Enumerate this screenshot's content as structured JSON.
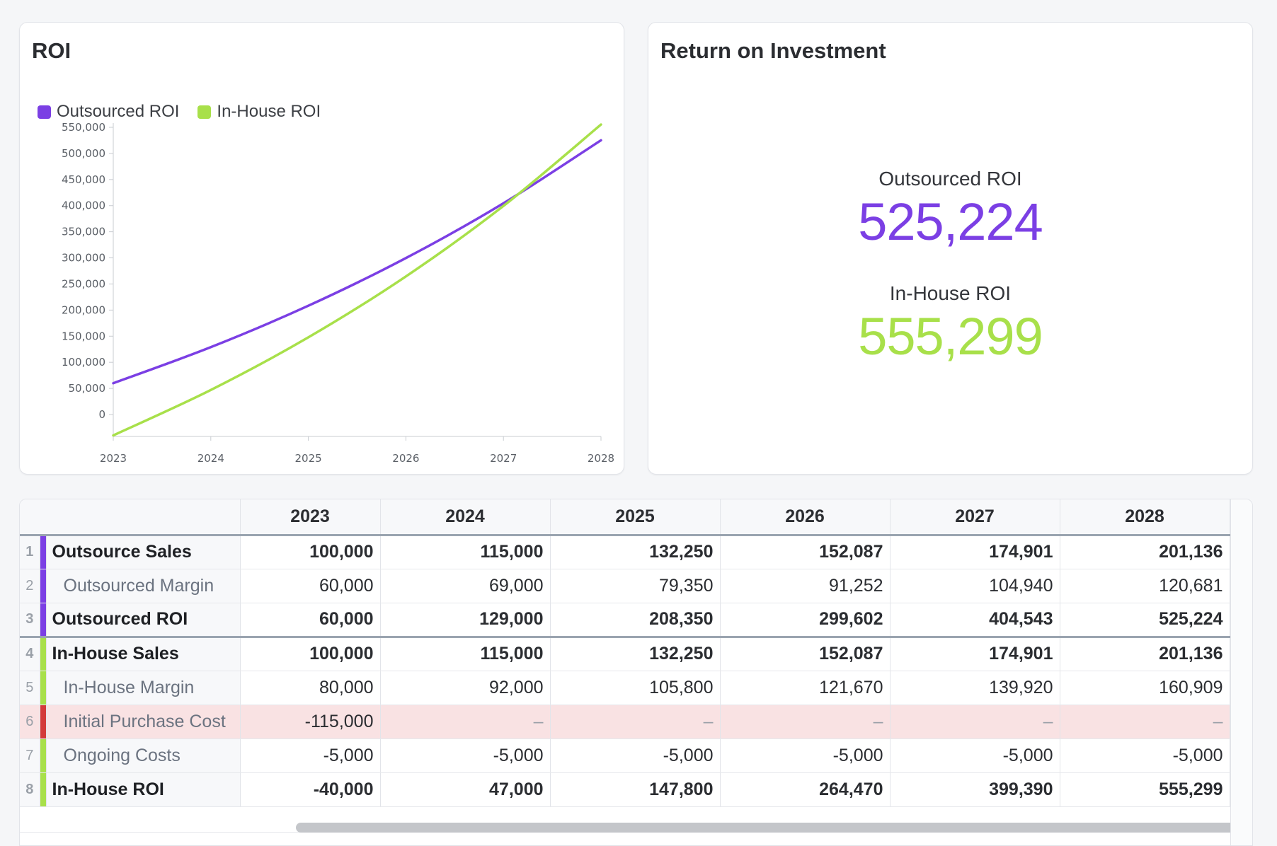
{
  "chart_card": {
    "title": "ROI",
    "legend": [
      {
        "label": "Outsourced ROI",
        "color": "#7b3fe4"
      },
      {
        "label": "In-House ROI",
        "color": "#a8e04a"
      }
    ]
  },
  "chart_data": {
    "type": "line",
    "title": "ROI",
    "x": [
      "2023",
      "2024",
      "2025",
      "2026",
      "2027",
      "2028"
    ],
    "series": [
      {
        "name": "Outsourced ROI",
        "color": "#7b3fe4",
        "values": [
          60000,
          129000,
          208350,
          299602,
          404543,
          525224
        ]
      },
      {
        "name": "In-House ROI",
        "color": "#a8e04a",
        "values": [
          -40000,
          47000,
          147800,
          264470,
          399390,
          555299
        ]
      }
    ],
    "yticks": [
      "550,000",
      "500,000",
      "450,000",
      "400,000",
      "350,000",
      "300,000",
      "250,000",
      "200,000",
      "150,000",
      "100,000",
      "50,000",
      "0"
    ],
    "ylim": [
      -40000,
      555000
    ],
    "grid": false,
    "legend_position": "top-left"
  },
  "stats_card": {
    "title": "Return on Investment",
    "items": [
      {
        "label": "Outsourced ROI",
        "value": "525,224",
        "color": "#7b3fe4"
      },
      {
        "label": "In-House ROI",
        "value": "555,299",
        "color": "#a8e04a"
      }
    ]
  },
  "table": {
    "years": [
      "2023",
      "2024",
      "2025",
      "2026",
      "2027",
      "2028"
    ],
    "rows": [
      {
        "num": "1",
        "label": "Outsource Sales",
        "bar": "#7b3fe4",
        "values": [
          "100,000",
          "115,000",
          "132,250",
          "152,087",
          "174,901",
          "201,136"
        ]
      },
      {
        "num": "2",
        "label": "Outsourced Margin",
        "bar": "#7b3fe4",
        "values": [
          "60,000",
          "69,000",
          "79,350",
          "91,252",
          "104,940",
          "120,681"
        ]
      },
      {
        "num": "3",
        "label": "Outsourced ROI",
        "bar": "#7b3fe4",
        "values": [
          "60,000",
          "129,000",
          "208,350",
          "299,602",
          "404,543",
          "525,224"
        ]
      },
      {
        "num": "4",
        "label": "In-House Sales",
        "bar": "#a8e04a",
        "values": [
          "100,000",
          "115,000",
          "132,250",
          "152,087",
          "174,901",
          "201,136"
        ]
      },
      {
        "num": "5",
        "label": "In-House Margin",
        "bar": "#a8e04a",
        "values": [
          "80,000",
          "92,000",
          "105,800",
          "121,670",
          "139,920",
          "160,909"
        ]
      },
      {
        "num": "6",
        "label": "Initial Purchase Cost",
        "bar": "#d33a3a",
        "values": [
          "-115,000",
          "–",
          "–",
          "–",
          "–",
          "–"
        ]
      },
      {
        "num": "7",
        "label": "Ongoing Costs",
        "bar": "#a8e04a",
        "values": [
          "-5,000",
          "-5,000",
          "-5,000",
          "-5,000",
          "-5,000",
          "-5,000"
        ]
      },
      {
        "num": "8",
        "label": "In-House ROI",
        "bar": "#a8e04a",
        "values": [
          "-40,000",
          "47,000",
          "147,800",
          "264,470",
          "399,390",
          "555,299"
        ]
      }
    ]
  }
}
